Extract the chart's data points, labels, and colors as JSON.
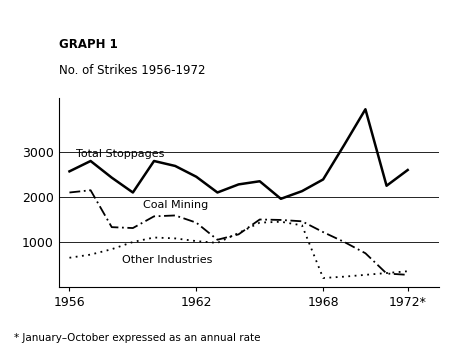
{
  "title_line1": "GRAPH 1",
  "title_line2": "No. of Strikes 1956-1972",
  "footnote": "* January–October expressed as an annual rate",
  "years": [
    1956,
    1957,
    1958,
    1959,
    1960,
    1961,
    1962,
    1963,
    1964,
    1965,
    1966,
    1967,
    1968,
    1969,
    1970,
    1971,
    1972
  ],
  "total_stoppages": [
    2570,
    2800,
    2430,
    2100,
    2800,
    2690,
    2450,
    2100,
    2280,
    2350,
    1960,
    2130,
    2390,
    3160,
    3950,
    2250,
    2600
  ],
  "coal_mining": [
    2100,
    2150,
    1330,
    1310,
    1570,
    1590,
    1430,
    1050,
    1170,
    1500,
    1490,
    1460,
    1220,
    1000,
    750,
    300,
    270
  ],
  "other_industries": [
    650,
    720,
    840,
    1000,
    1100,
    1080,
    1020,
    980,
    1200,
    1430,
    1450,
    1370,
    200,
    230,
    270,
    310,
    350
  ],
  "ylim": [
    0,
    4200
  ],
  "yticks": [
    1000,
    2000,
    3000
  ],
  "xlabel_ticks": [
    1956,
    1962,
    1968,
    1972
  ],
  "xlabel_labels": [
    "1956",
    "1962",
    "1968",
    "1972*"
  ],
  "label_total": "Total Stoppages",
  "label_coal": "Coal Mining",
  "label_other": "Other Industries",
  "bg_color": "#ffffff",
  "line_color": "#000000"
}
